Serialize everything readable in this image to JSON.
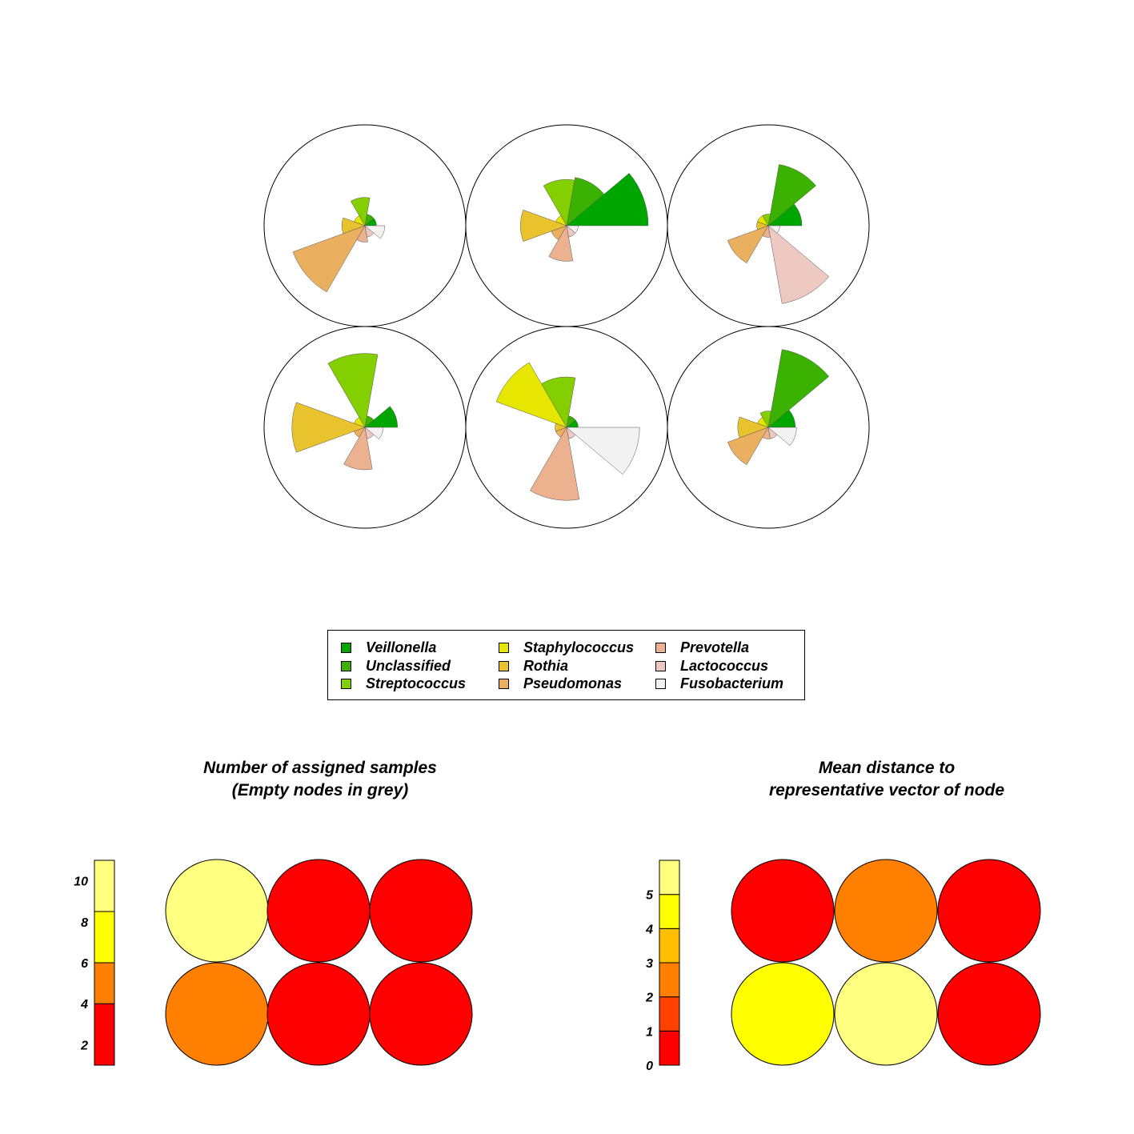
{
  "chart_data": [
    {
      "type": "segment-plot",
      "grid": {
        "rows": 2,
        "cols": 3
      },
      "max_radius": 1,
      "nodes": [
        {
          "row": 1,
          "col": 1,
          "values": [
            0.02,
            0.02,
            0.12,
            0.02,
            0.08,
            0.88,
            0.04,
            0.02,
            0.06
          ]
        },
        {
          "row": 1,
          "col": 2,
          "values": [
            1.0,
            0.36,
            0.32,
            0.02,
            0.32,
            0.04,
            0.19,
            0.02,
            0.02
          ]
        },
        {
          "row": 1,
          "col": 3,
          "values": [
            0.17,
            0.58,
            0.02,
            0.02,
            0.02,
            0.28,
            0.02,
            0.94,
            0.02
          ]
        },
        {
          "row": 2,
          "col": 1,
          "values": [
            0.16,
            0.02,
            0.82,
            0.02,
            0.8,
            0.02,
            0.27,
            0.02,
            0.05
          ]
        },
        {
          "row": 2,
          "col": 2,
          "values": [
            0.02,
            0.02,
            0.38,
            0.84,
            0.02,
            0.02,
            0.8,
            0.02,
            0.8
          ]
        },
        {
          "row": 2,
          "col": 3,
          "values": [
            0.11,
            0.94,
            0.04,
            0.02,
            0.14,
            0.28,
            0.02,
            0.02,
            0.12
          ]
        }
      ]
    },
    {
      "type": "heatmap-nodes",
      "title_lines": [
        "Number of assigned samples",
        "(Empty nodes in grey)"
      ],
      "grid": {
        "rows": 2,
        "cols": 3
      },
      "values": [
        [
          11,
          1,
          1
        ],
        [
          5,
          1,
          1
        ]
      ],
      "scale": {
        "min": 1,
        "max": 11,
        "ticks": [
          2,
          4,
          6,
          8,
          10
        ],
        "bands": [
          {
            "from": 1,
            "to": 4,
            "color": "#ff0000"
          },
          {
            "from": 4,
            "to": 6,
            "color": "#ff8000"
          },
          {
            "from": 6,
            "to": 8.5,
            "color": "#ffff00"
          },
          {
            "from": 8.5,
            "to": 11,
            "color": "#ffff80"
          }
        ]
      }
    },
    {
      "type": "heatmap-nodes",
      "title_lines": [
        "Mean distance to",
        "representative vector of node"
      ],
      "grid": {
        "rows": 2,
        "cols": 3
      },
      "values": [
        [
          0.5,
          2.5,
          0.5
        ],
        [
          4.5,
          5.5,
          0.5
        ]
      ],
      "scale": {
        "min": 0,
        "max": 6,
        "ticks": [
          0,
          1,
          2,
          3,
          4,
          5
        ],
        "bands": [
          {
            "from": 0,
            "to": 1,
            "color": "#ff0000"
          },
          {
            "from": 1,
            "to": 2,
            "color": "#ff4000"
          },
          {
            "from": 2,
            "to": 3,
            "color": "#ff8000"
          },
          {
            "from": 3,
            "to": 4,
            "color": "#ffbf00"
          },
          {
            "from": 4,
            "to": 5,
            "color": "#ffff00"
          },
          {
            "from": 5,
            "to": 6,
            "color": "#ffff80"
          }
        ]
      }
    }
  ],
  "legend": {
    "items": [
      {
        "label": "Veillonella",
        "color": "#00a600"
      },
      {
        "label": "Unclassified",
        "color": "#3bb200"
      },
      {
        "label": "Streptococcus",
        "color": "#83cf00"
      },
      {
        "label": "Staphylococcus",
        "color": "#e6e600"
      },
      {
        "label": "Rothia",
        "color": "#e8c32e"
      },
      {
        "label": "Pseudomonas",
        "color": "#eab05f"
      },
      {
        "label": "Prevotella",
        "color": "#ecb28f"
      },
      {
        "label": "Lactococcus",
        "color": "#eec9c2"
      },
      {
        "label": "Fusobacterium",
        "color": "#f2f2f2"
      }
    ]
  }
}
